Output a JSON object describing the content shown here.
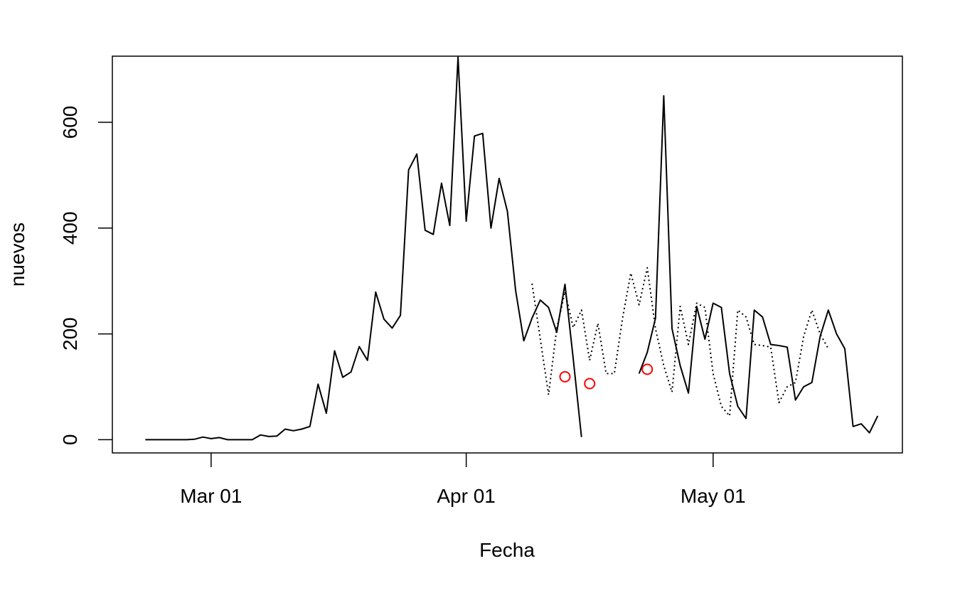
{
  "chart_data": {
    "type": "line",
    "xlabel": "Fecha",
    "ylabel": "nuevos",
    "xlim": [
      "2020-02-18",
      "2020-05-24"
    ],
    "ylim": [
      -25,
      725
    ],
    "xticks": [
      {
        "date": "2020-03-01",
        "label": "Mar 01"
      },
      {
        "date": "2020-04-01",
        "label": "Apr 01"
      },
      {
        "date": "2020-05-01",
        "label": "May 01"
      }
    ],
    "yticks": [
      0,
      200,
      400,
      600
    ],
    "series": [
      {
        "style": "dotted",
        "color": "#000000",
        "x": [
          "2020-04-09",
          "2020-04-10",
          "2020-04-11",
          "2020-04-12",
          "2020-04-13",
          "2020-04-14",
          "2020-04-15",
          "2020-04-16",
          "2020-04-17",
          "2020-04-18",
          "2020-04-19",
          "2020-04-20",
          "2020-04-21",
          "2020-04-22",
          "2020-04-23",
          "2020-04-24",
          "2020-04-25",
          "2020-04-26",
          "2020-04-27",
          "2020-04-28",
          "2020-04-29",
          "2020-04-30",
          "2020-05-01",
          "2020-05-02",
          "2020-05-03",
          "2020-05-04",
          "2020-05-05",
          "2020-05-06",
          "2020-05-07",
          "2020-05-08",
          "2020-05-09",
          "2020-05-10",
          "2020-05-11",
          "2020-05-12",
          "2020-05-13",
          "2020-05-14",
          "2020-05-15"
        ],
        "y": [
          295,
          190,
          85,
          210,
          280,
          212,
          245,
          150,
          220,
          125,
          125,
          230,
          315,
          255,
          325,
          210,
          140,
          90,
          252,
          180,
          258,
          250,
          125,
          63,
          45,
          245,
          232,
          180,
          178,
          175,
          70,
          100,
          108,
          195,
          245,
          200,
          172
        ]
      },
      {
        "style": "solid",
        "color": "#000000",
        "x": [
          "2020-02-22",
          "2020-02-23",
          "2020-02-24",
          "2020-02-25",
          "2020-02-26",
          "2020-02-27",
          "2020-02-28",
          "2020-02-29",
          "2020-03-01",
          "2020-03-02",
          "2020-03-03",
          "2020-03-04",
          "2020-03-05",
          "2020-03-06",
          "2020-03-07",
          "2020-03-08",
          "2020-03-09",
          "2020-03-10",
          "2020-03-11",
          "2020-03-12",
          "2020-03-13",
          "2020-03-14",
          "2020-03-15",
          "2020-03-16",
          "2020-03-17",
          "2020-03-18",
          "2020-03-19",
          "2020-03-20",
          "2020-03-21",
          "2020-03-22",
          "2020-03-23",
          "2020-03-24",
          "2020-03-25",
          "2020-03-26",
          "2020-03-27",
          "2020-03-28",
          "2020-03-29",
          "2020-03-30",
          "2020-03-31",
          "2020-04-01",
          "2020-04-02",
          "2020-04-03",
          "2020-04-04",
          "2020-04-05",
          "2020-04-06",
          "2020-04-07",
          "2020-04-08",
          "2020-04-09",
          "2020-04-10",
          "2020-04-11",
          "2020-04-12",
          "2020-04-13",
          "2020-04-14",
          "2020-04-15",
          "2020-04-16",
          "2020-04-17",
          "2020-04-18",
          "2020-04-19",
          "2020-04-20",
          "2020-04-21",
          "2020-04-22",
          "2020-04-23",
          "2020-04-24",
          "2020-04-25",
          "2020-04-26",
          "2020-04-27",
          "2020-04-28",
          "2020-04-29",
          "2020-04-30",
          "2020-05-01",
          "2020-05-02",
          "2020-05-03",
          "2020-05-04",
          "2020-05-05",
          "2020-05-06",
          "2020-05-07",
          "2020-05-08",
          "2020-05-09",
          "2020-05-10",
          "2020-05-11",
          "2020-05-12",
          "2020-05-13",
          "2020-05-14",
          "2020-05-15",
          "2020-05-16",
          "2020-05-17",
          "2020-05-18",
          "2020-05-19",
          "2020-05-20",
          "2020-05-21"
        ],
        "y": [
          0,
          0,
          0,
          0,
          0,
          0,
          1,
          5,
          2,
          4,
          0,
          0,
          0,
          0,
          9,
          6,
          7,
          20,
          17,
          20,
          25,
          105,
          50,
          168,
          118,
          128,
          176,
          150,
          279,
          228,
          211,
          235,
          510,
          540,
          396,
          388,
          485,
          405,
          723,
          413,
          574,
          579,
          400,
          494,
          432,
          282,
          187,
          230,
          264,
          250,
          203,
          294,
          153,
          5,
          null,
          null,
          null,
          null,
          null,
          null,
          125,
          165,
          230,
          650,
          210,
          140,
          88,
          252,
          190,
          258,
          250,
          125,
          63,
          40,
          245,
          232,
          180,
          178,
          175,
          75,
          100,
          108,
          195,
          245,
          200,
          172,
          25,
          30,
          13,
          45
        ]
      }
    ],
    "points": {
      "color": "#ff0000",
      "x": [
        "2020-04-13",
        "2020-04-16",
        "2020-04-23"
      ],
      "y": [
        119,
        106,
        133
      ]
    }
  }
}
